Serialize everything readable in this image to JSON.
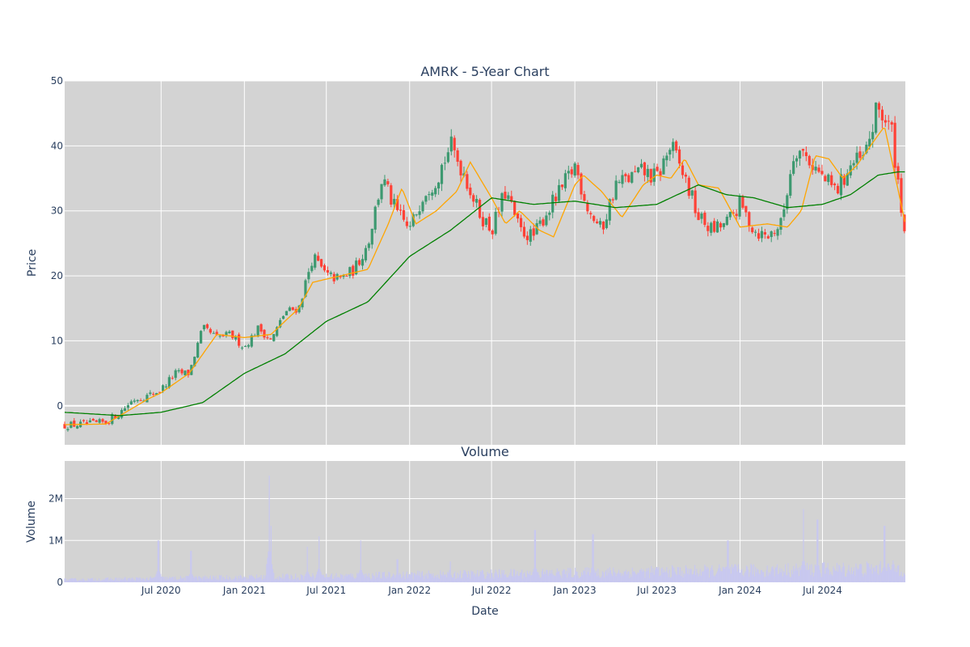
{
  "chart_data": [
    {
      "type": "candlestick",
      "title": "AMRK - 5-Year Chart",
      "ylabel": "Price",
      "xlabel": "",
      "x_range": [
        "2019-12-01",
        "2024-12-31"
      ],
      "ylim": [
        -6,
        50
      ],
      "yticks": [
        0,
        10,
        20,
        30,
        40,
        50
      ],
      "yticks_labels": [
        "0",
        "10",
        "20",
        "30",
        "40",
        "50"
      ],
      "xticks": [
        "2020-07-01",
        "2021-01-01",
        "2021-07-01",
        "2022-01-01",
        "2022-07-01",
        "2023-01-01",
        "2023-07-01",
        "2024-01-01",
        "2024-07-01"
      ],
      "grid": true,
      "colors": {
        "up": "#3d9970",
        "down": "#ff4136",
        "ma_short": "#ffa500",
        "ma_long": "#008000",
        "plot_bg": "#d3d3d3"
      },
      "price_anchors": {
        "x": [
          "2019-12-01",
          "2020-02-01",
          "2020-03-01",
          "2020-04-01",
          "2020-05-01",
          "2020-06-01",
          "2020-07-01",
          "2020-08-01",
          "2020-09-01",
          "2020-10-01",
          "2020-11-01",
          "2020-12-01",
          "2021-01-01",
          "2021-02-01",
          "2021-03-01",
          "2021-04-01",
          "2021-05-01",
          "2021-06-01",
          "2021-07-01",
          "2021-08-01",
          "2021-09-01",
          "2021-10-01",
          "2021-11-01",
          "2021-12-01",
          "2022-01-01",
          "2022-02-01",
          "2022-03-01",
          "2022-04-01",
          "2022-05-01",
          "2022-06-01",
          "2022-07-01",
          "2022-08-01",
          "2022-09-01",
          "2022-10-01",
          "2022-11-01",
          "2022-12-01",
          "2023-01-01",
          "2023-02-01",
          "2023-03-01",
          "2023-04-01",
          "2023-05-01",
          "2023-06-01",
          "2023-07-01",
          "2023-08-01",
          "2023-09-01",
          "2023-10-01",
          "2023-11-01",
          "2023-12-01",
          "2024-01-01",
          "2024-02-01",
          "2024-03-01",
          "2024-04-01",
          "2024-05-01",
          "2024-06-01",
          "2024-07-01",
          "2024-08-01",
          "2024-09-01",
          "2024-10-01",
          "2024-11-01",
          "2024-12-01",
          "2024-12-31"
        ],
        "close": [
          -3,
          -2.8,
          -2.5,
          -1,
          1,
          1.5,
          2.5,
          5,
          5,
          12,
          10.5,
          11,
          9,
          12,
          10,
          14.5,
          15,
          23,
          20,
          19.5,
          21,
          25,
          35,
          30,
          27,
          33,
          35,
          40,
          36,
          30,
          27,
          33,
          27,
          26,
          30,
          33,
          37,
          30,
          27,
          34,
          35,
          36,
          35,
          40,
          35,
          29,
          27,
          28,
          31,
          27,
          26,
          28,
          40,
          38,
          35,
          33,
          37,
          38,
          46,
          42,
          26
        ]
      },
      "ma_short_anchors": {
        "x": [
          "2019-12-01",
          "2020-03-01",
          "2020-06-01",
          "2020-07-01",
          "2020-09-01",
          "2020-11-01",
          "2021-01-01",
          "2021-03-01",
          "2021-05-01",
          "2021-06-01",
          "2021-08-01",
          "2021-10-01",
          "2021-11-15",
          "2021-12-15",
          "2022-01-15",
          "2022-03-01",
          "2022-04-15",
          "2022-05-15",
          "2022-07-01",
          "2022-08-01",
          "2022-09-01",
          "2022-10-15",
          "2022-11-15",
          "2023-01-01",
          "2023-01-20",
          "2023-03-01",
          "2023-04-15",
          "2023-06-01",
          "2023-07-01",
          "2023-08-01",
          "2023-09-01",
          "2023-10-01",
          "2023-11-15",
          "2024-01-01",
          "2024-03-01",
          "2024-04-15",
          "2024-05-15",
          "2024-06-15",
          "2024-07-15",
          "2024-08-15",
          "2024-09-15",
          "2024-10-15",
          "2024-11-15",
          "2024-12-31"
        ],
        "values": [
          -2.9,
          -2.8,
          1,
          2,
          5,
          11,
          10.5,
          11,
          15,
          19,
          20,
          21,
          28,
          33.5,
          28,
          30,
          33,
          37.5,
          32,
          28,
          30,
          27,
          26,
          34,
          35.5,
          33,
          29,
          34,
          35.5,
          35,
          38,
          34,
          33.5,
          27.5,
          28,
          27.5,
          30,
          38.5,
          38,
          35,
          37,
          40,
          43,
          28
        ]
      },
      "ma_long_anchors": {
        "x": [
          "2019-12-01",
          "2020-04-01",
          "2020-07-01",
          "2020-10-01",
          "2021-01-01",
          "2021-04-01",
          "2021-07-01",
          "2021-10-01",
          "2022-01-01",
          "2022-04-01",
          "2022-07-01",
          "2022-10-01",
          "2023-01-01",
          "2023-04-01",
          "2023-07-01",
          "2023-10-01",
          "2023-12-01",
          "2024-02-01",
          "2024-04-15",
          "2024-07-01",
          "2024-09-01",
          "2024-11-01",
          "2024-12-15",
          "2024-12-31"
        ],
        "values": [
          -1,
          -1.5,
          -1,
          0.5,
          5,
          8,
          13,
          16,
          23,
          27,
          32,
          31,
          31.5,
          30.5,
          31,
          34,
          32.5,
          32,
          30.5,
          31,
          32.5,
          35.5,
          36,
          36
        ]
      }
    },
    {
      "type": "bar",
      "title": "Volume",
      "ylabel": "Volume",
      "xlabel": "Date",
      "ylim": [
        0,
        2900000
      ],
      "yticks": [
        0,
        1000000,
        2000000
      ],
      "yticks_labels": [
        "0",
        "1M",
        "2M"
      ],
      "xticks_labels": [
        "Jul 2020",
        "Jan 2021",
        "Jul 2021",
        "Jan 2022",
        "Jul 2022",
        "Jan 2023",
        "Jul 2023",
        "Jan 2024",
        "Jul 2024"
      ],
      "grid": true,
      "colors": {
        "bar": "#c8c8f0",
        "plot_bg": "#d3d3d3"
      },
      "volume_baseline": 150000,
      "spikes": [
        {
          "x": "2020-06-25",
          "value": 1000000
        },
        {
          "x": "2020-09-05",
          "value": 750000
        },
        {
          "x": "2021-02-25",
          "value": 2550000
        },
        {
          "x": "2021-03-01",
          "value": 1350000
        },
        {
          "x": "2021-05-20",
          "value": 850000
        },
        {
          "x": "2021-06-15",
          "value": 1100000
        },
        {
          "x": "2021-09-15",
          "value": 1000000
        },
        {
          "x": "2021-12-05",
          "value": 550000
        },
        {
          "x": "2022-04-01",
          "value": 500000
        },
        {
          "x": "2022-10-05",
          "value": 1250000
        },
        {
          "x": "2023-02-10",
          "value": 1150000
        },
        {
          "x": "2023-12-05",
          "value": 1000000
        },
        {
          "x": "2024-05-20",
          "value": 1750000
        },
        {
          "x": "2024-06-20",
          "value": 1500000
        },
        {
          "x": "2024-11-15",
          "value": 1350000
        }
      ]
    }
  ]
}
